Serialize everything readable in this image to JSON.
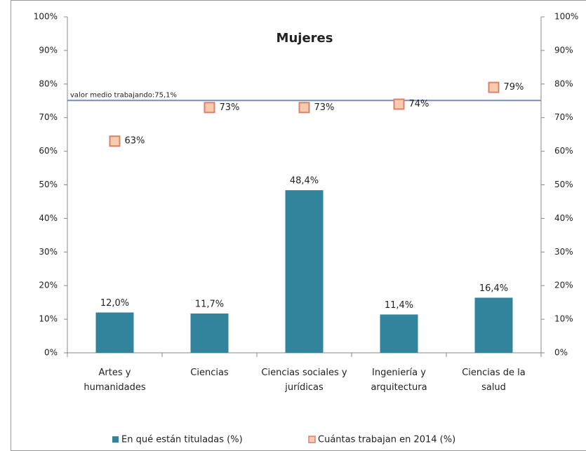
{
  "chart_data": {
    "type": "bar",
    "title": "Mujeres",
    "categories": [
      "Artes y humanidades",
      "Ciencias",
      "Ciencias sociales y jurídicas",
      "Ingeniería y arquitectura",
      "Ciencias de la salud"
    ],
    "series": [
      {
        "name": "En qué están tituladas  (%)",
        "type": "bar",
        "color": "#31849b",
        "values": [
          12.0,
          11.7,
          48.4,
          11.4,
          16.4
        ],
        "value_labels": [
          "12,0%",
          "11,7%",
          "48,4%",
          "11,4%",
          "16,4%"
        ]
      },
      {
        "name": "Cuántas trabajan en 2014 (%)",
        "type": "scatter",
        "axis": "y2",
        "color": "#f8cbad",
        "edge_color": "#d9826b",
        "values": [
          63,
          73,
          73,
          74,
          79
        ],
        "value_labels": [
          "63%",
          "73%",
          "73%",
          "74%",
          "79%"
        ]
      }
    ],
    "reference_line": {
      "value": 75.1,
      "label": "valor medio trabajando:75,1%",
      "color": "#6f8fc7",
      "axis": "y2"
    },
    "ylim": [
      0,
      100
    ],
    "yticks": [
      {
        "value": 0,
        "label": "0%"
      },
      {
        "value": 10,
        "label": "10%"
      },
      {
        "value": 20,
        "label": "20%"
      },
      {
        "value": 30,
        "label": "30%"
      },
      {
        "value": 40,
        "label": "40%"
      },
      {
        "value": 50,
        "label": "50%"
      },
      {
        "value": 60,
        "label": "60%"
      },
      {
        "value": 70,
        "label": "70%"
      },
      {
        "value": 80,
        "label": "80%"
      },
      {
        "value": 90,
        "label": "90%"
      },
      {
        "value": 100,
        "label": "100%"
      }
    ],
    "y2lim": [
      0,
      100
    ],
    "y2ticks": [
      {
        "value": 0,
        "label": "0%"
      },
      {
        "value": 10,
        "label": "10%"
      },
      {
        "value": 20,
        "label": "20%"
      },
      {
        "value": 30,
        "label": "30%"
      },
      {
        "value": 40,
        "label": "40%"
      },
      {
        "value": 50,
        "label": "50%"
      },
      {
        "value": 60,
        "label": "60%"
      },
      {
        "value": 70,
        "label": "70%"
      },
      {
        "value": 80,
        "label": "80%"
      },
      {
        "value": 90,
        "label": "90%"
      },
      {
        "value": 100,
        "label": "100%"
      }
    ],
    "legend": "bottom",
    "grid": false
  }
}
